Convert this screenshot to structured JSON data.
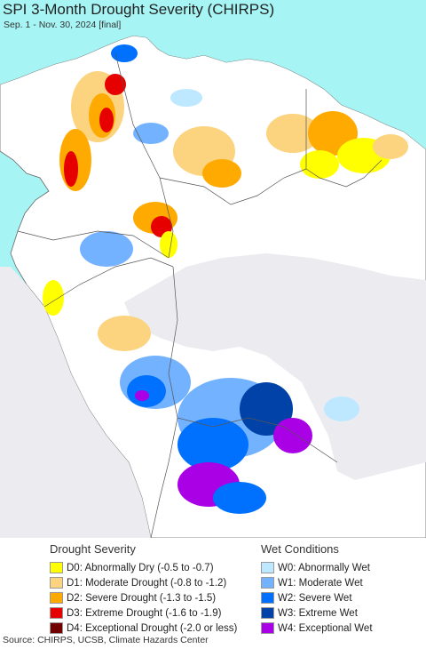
{
  "header": {
    "title": "SPI 3-Month Drought Severity (CHIRPS)",
    "subtitle": "Sep. 1 - Nov. 30, 2024 [final]"
  },
  "colors": {
    "ocean": "#a7f4f4",
    "land": "#ffffff",
    "outside": "#ececf0",
    "border": "#555555"
  },
  "legend": {
    "drought": {
      "heading": "Drought Severity",
      "items": [
        {
          "label": "D0: Abnormally Dry (-0.5 to -0.7)",
          "color": "#ffff00"
        },
        {
          "label": "D1: Moderate Drought (-0.8 to -1.2)",
          "color": "#fcd37f"
        },
        {
          "label": "D2: Severe Drought (-1.3 to -1.5)",
          "color": "#ffaa00"
        },
        {
          "label": "D3: Extreme Drought (-1.6 to -1.9)",
          "color": "#e60000"
        },
        {
          "label": "D4: Exceptional Drought (-2.0 or less)",
          "color": "#730000"
        }
      ]
    },
    "wet": {
      "heading": "Wet Conditions",
      "items": [
        {
          "label": "W0: Abnormally Wet",
          "color": "#bee8ff"
        },
        {
          "label": "W1: Moderate Wet",
          "color": "#73b2ff"
        },
        {
          "label": "W2: Severe Wet",
          "color": "#0070ff"
        },
        {
          "label": "W3: Extreme Wet",
          "color": "#0042a8"
        },
        {
          "label": "W4: Exceptional Wet",
          "color": "#a900e6"
        }
      ]
    }
  },
  "footer": {
    "source": "Source: CHIRPS, UCSB, Climate Hazards Center"
  }
}
